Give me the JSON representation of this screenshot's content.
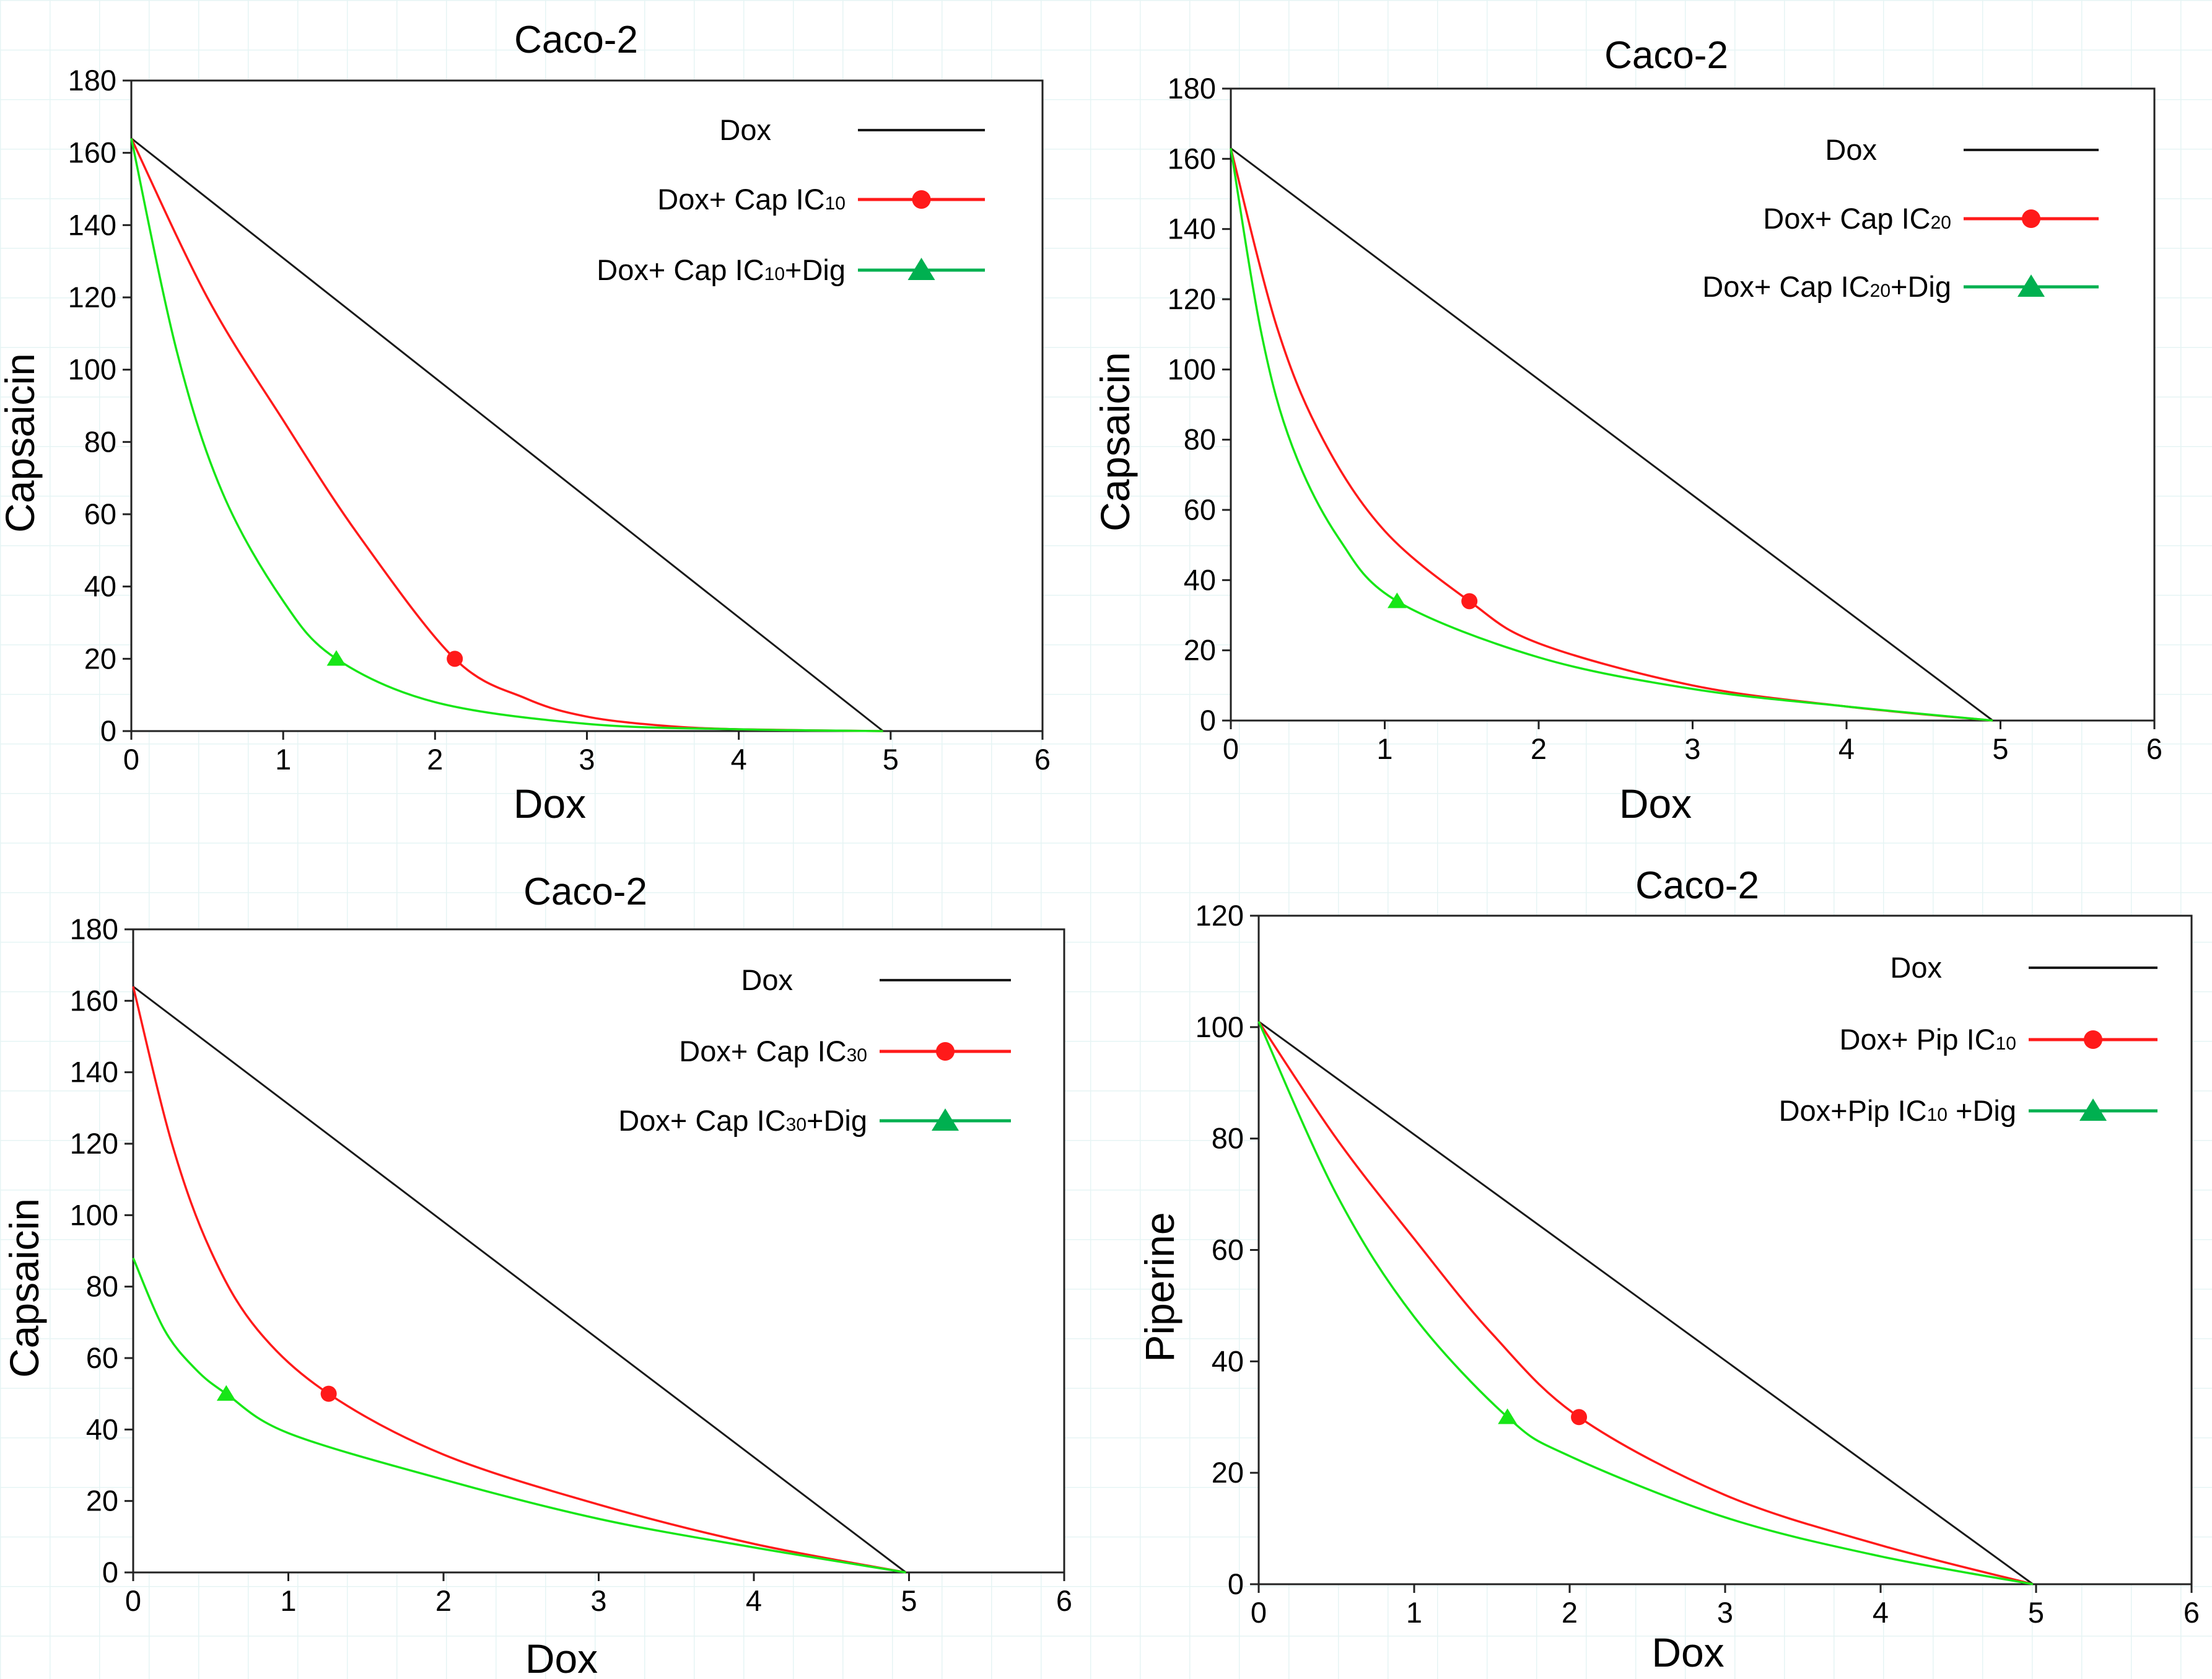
{
  "colors": {
    "dox": "#1a1a1a",
    "cap": "#ff1a1a",
    "dig": "#17e617",
    "legend_dig": "#00b050",
    "grid": "#e6f4f4",
    "axis": "#222222"
  },
  "chart_data": [
    {
      "type": "line",
      "title": "Caco-2",
      "xlabel": "Dox",
      "ylabel": "Capsaicin",
      "xlim": [
        0,
        6
      ],
      "ylim": [
        0,
        180
      ],
      "xticks": [
        "0",
        "1",
        "2",
        "3",
        "4",
        "5",
        "6"
      ],
      "yticks": [
        "0",
        "20",
        "40",
        "60",
        "80",
        "100",
        "120",
        "140",
        "160",
        "180"
      ],
      "grid": false,
      "legend": "top-right",
      "series": [
        {
          "name": "Dox",
          "color": "#1a1a1a",
          "x": [
            0,
            4.95
          ],
          "y": [
            164,
            0
          ]
        },
        {
          "name": "Dox+ Cap IC10",
          "label_parts": [
            "Dox+ Cap IC",
            "10",
            ""
          ],
          "color": "#ff1a1a",
          "marker": "circle",
          "x": [
            0,
            0.5,
            1.0,
            1.5,
            2.13,
            2.6,
            3.0,
            3.5,
            4.0,
            4.95
          ],
          "y": [
            164,
            120,
            86,
            54,
            20,
            9,
            4,
            1.5,
            0.5,
            0
          ],
          "point": [
            2.13,
            20
          ]
        },
        {
          "name": "Dox+ Cap IC10+Dig",
          "label_parts": [
            "Dox+ Cap IC",
            "10",
            "+Dig"
          ],
          "color": "#17e617",
          "marker": "triangle",
          "x": [
            0,
            0.3,
            0.6,
            1.0,
            1.35,
            2.0,
            3.0,
            4.0,
            4.95
          ],
          "y": [
            164,
            105,
            66,
            36,
            20,
            8,
            2,
            0.5,
            0
          ],
          "point": [
            1.35,
            20
          ]
        }
      ]
    },
    {
      "type": "line",
      "title": "Caco-2",
      "xlabel": "Dox",
      "ylabel": "Capsaicin",
      "xlim": [
        0,
        6
      ],
      "ylim": [
        0,
        180
      ],
      "xticks": [
        "0",
        "1",
        "2",
        "3",
        "4",
        "5",
        "6"
      ],
      "yticks": [
        "0",
        "20",
        "40",
        "60",
        "80",
        "100",
        "120",
        "140",
        "160",
        "180"
      ],
      "grid": false,
      "legend": "top-right",
      "series": [
        {
          "name": "Dox",
          "color": "#1a1a1a",
          "x": [
            0,
            4.95
          ],
          "y": [
            163,
            0
          ]
        },
        {
          "name": "Dox+ Cap IC20",
          "label_parts": [
            "Dox+ Cap IC",
            "20",
            ""
          ],
          "color": "#ff1a1a",
          "marker": "circle",
          "x": [
            0,
            0.3,
            0.6,
            1.0,
            1.55,
            2.0,
            3.0,
            4.0,
            4.95
          ],
          "y": [
            163,
            112,
            80,
            54,
            34,
            22,
            10,
            4,
            0
          ],
          "point": [
            1.55,
            34
          ]
        },
        {
          "name": "Dox+ Cap IC20+Dig",
          "label_parts": [
            "Dox+ Cap IC",
            "20",
            "+Dig"
          ],
          "color": "#17e617",
          "marker": "triangle",
          "x": [
            0,
            0.2,
            0.4,
            0.7,
            1.08,
            2.0,
            3.0,
            4.0,
            4.95
          ],
          "y": [
            163,
            110,
            78,
            52,
            34,
            18,
            9,
            4,
            0
          ],
          "point": [
            1.08,
            34
          ]
        }
      ]
    },
    {
      "type": "line",
      "title": "Caco-2",
      "xlabel": "Dox",
      "ylabel": "Capsaicin",
      "xlim": [
        0,
        6
      ],
      "ylim": [
        0,
        180
      ],
      "xticks": [
        "0",
        "1",
        "2",
        "3",
        "4",
        "5",
        "6"
      ],
      "yticks": [
        "0",
        "20",
        "40",
        "60",
        "80",
        "100",
        "120",
        "140",
        "160",
        "180"
      ],
      "grid": false,
      "legend": "top-right",
      "series": [
        {
          "name": "Dox",
          "color": "#1a1a1a",
          "x": [
            0,
            4.98
          ],
          "y": [
            164,
            0
          ]
        },
        {
          "name": "Dox+ Cap IC30",
          "label_parts": [
            "Dox+ Cap IC",
            "30",
            ""
          ],
          "color": "#ff1a1a",
          "marker": "circle",
          "x": [
            0,
            0.25,
            0.5,
            0.8,
            1.26,
            2.0,
            3.0,
            4.0,
            4.98
          ],
          "y": [
            164,
            120,
            90,
            68,
            50,
            33,
            19,
            8,
            0
          ],
          "point": [
            1.26,
            50
          ]
        },
        {
          "name": "Dox+ Cap IC30+Dig",
          "label_parts": [
            "Dox+ Cap IC",
            "30",
            "+Dig"
          ],
          "color": "#17e617",
          "marker": "triangle",
          "x": [
            0,
            0.2,
            0.4,
            0.6,
            1.0,
            2.0,
            3.0,
            4.0,
            4.98
          ],
          "y": [
            88,
            68,
            57,
            50,
            39,
            26,
            15,
            7,
            0
          ],
          "point": [
            0.6,
            50
          ]
        }
      ]
    },
    {
      "type": "line",
      "title": "Caco-2",
      "xlabel": "Dox",
      "ylabel": "Piperine",
      "xlim": [
        0,
        6
      ],
      "ylim": [
        0,
        120
      ],
      "xticks": [
        "0",
        "1",
        "2",
        "3",
        "4",
        "5",
        "6"
      ],
      "yticks": [
        "0",
        "20",
        "40",
        "60",
        "80",
        "100",
        "120"
      ],
      "grid": false,
      "legend": "top-right",
      "series": [
        {
          "name": "Dox",
          "color": "#1a1a1a",
          "x": [
            0,
            4.98
          ],
          "y": [
            101,
            0
          ]
        },
        {
          "name": "Dox+ Pip IC10",
          "label_parts": [
            "Dox+ Pip  IC",
            "10",
            ""
          ],
          "color": "#ff1a1a",
          "marker": "circle",
          "x": [
            0,
            0.5,
            1.0,
            1.5,
            2.06,
            3.0,
            4.0,
            4.98
          ],
          "y": [
            101,
            80,
            62,
            45,
            30,
            16,
            7,
            0
          ],
          "point": [
            2.06,
            30
          ]
        },
        {
          "name": "Dox+Pip IC10 +Dig",
          "label_parts": [
            "Dox+Pip  IC",
            "10",
            " +Dig"
          ],
          "color": "#17e617",
          "marker": "triangle",
          "x": [
            0,
            0.5,
            1.0,
            1.6,
            2.0,
            3.0,
            4.0,
            4.98
          ],
          "y": [
            101,
            70,
            48,
            30,
            23,
            12,
            5,
            0
          ],
          "point": [
            1.6,
            30
          ]
        }
      ]
    }
  ]
}
